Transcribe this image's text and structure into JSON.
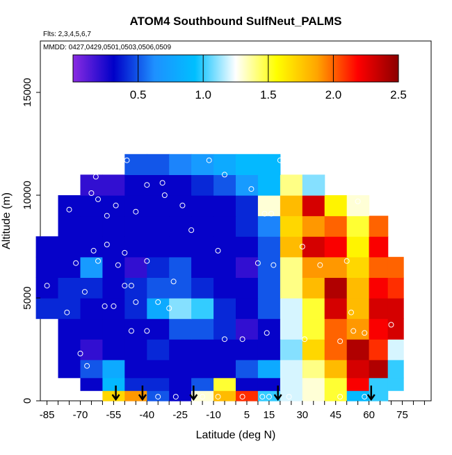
{
  "chart_data": {
    "type": "heatmap",
    "title": "ATOM4 Southbound SulfNeut_PALMS",
    "flights_label": "Flts: 2,3,4,5,6,7",
    "dates_label": "MMDD: 0427,0429,0501,0503,0506,0509",
    "xlabel": "Latitude (deg N)",
    "ylabel": "Altitude (m)",
    "xlim": [
      -88,
      88
    ],
    "ylim": [
      0,
      17500
    ],
    "x_ticks": [
      -85,
      -70,
      -55,
      -40,
      -25,
      -10,
      5,
      15,
      30,
      45,
      60,
      75
    ],
    "y_ticks": [
      0,
      5000,
      10000,
      15000
    ],
    "colorbar": {
      "range": [
        0,
        2.5
      ],
      "ticks": [
        "0.5",
        "1.0",
        "1.5",
        "2.0",
        "2.5"
      ],
      "tick_values": [
        0.5,
        1.0,
        1.5,
        2.0,
        2.5
      ],
      "colors": [
        "#8a2be2",
        "#0000c8",
        "#1e90ff",
        "#00bfff",
        "#ffffff",
        "#ffff00",
        "#ffa500",
        "#ff0000",
        "#8b0000"
      ]
    },
    "sample_arrows_lat": [
      -54,
      -42,
      -19,
      19,
      61
    ],
    "curtain": {
      "lats": [
        -85,
        -75,
        -65,
        -55,
        -45,
        -35,
        -25,
        -15,
        -5,
        5,
        15,
        25,
        35,
        45,
        55,
        65,
        72
      ],
      "alts": [
        250,
        750,
        1500,
        2500,
        3500,
        4500,
        5500,
        6500,
        7500,
        8500,
        9500,
        10500,
        11500
      ],
      "values": [
        [
          null,
          null,
          null,
          1.7,
          1.9,
          0.5,
          0.3,
          1.3,
          1.8,
          2.1,
          1.0,
          1.2,
          1.3,
          1.5,
          0.9,
          1.0,
          null
        ],
        [
          null,
          null,
          0.3,
          0.9,
          0.4,
          0.4,
          0.3,
          0.5,
          1.5,
          0.3,
          0.3,
          1.2,
          1.3,
          1.5,
          2.2,
          1.0,
          1.0
        ],
        [
          null,
          0.3,
          0.5,
          0.8,
          0.3,
          0.3,
          0.3,
          0.3,
          0.3,
          0.5,
          0.8,
          1.2,
          1.4,
          1.8,
          2.3,
          2.4,
          1.0
        ],
        [
          null,
          0.3,
          0.2,
          0.3,
          0.3,
          0.4,
          0.3,
          0.3,
          0.3,
          0.3,
          0.3,
          1.1,
          1.7,
          2.0,
          2.4,
          2.1,
          1.2
        ],
        [
          null,
          0.3,
          0.3,
          0.3,
          0.3,
          0.3,
          0.5,
          0.5,
          0.4,
          0.2,
          0.3,
          1.2,
          1.5,
          2.0,
          1.9,
          2.2,
          2.3
        ],
        [
          0.4,
          0.4,
          0.3,
          0.3,
          0.4,
          0.8,
          1.1,
          1.0,
          0.4,
          0.3,
          0.5,
          1.2,
          1.5,
          2.3,
          1.8,
          2.3,
          2.3
        ],
        [
          0.3,
          0.4,
          0.4,
          0.3,
          0.4,
          0.5,
          0.5,
          0.4,
          0.3,
          0.3,
          0.5,
          1.4,
          1.8,
          2.4,
          1.8,
          2.2,
          2.1
        ],
        [
          0.3,
          0.3,
          0.7,
          0.3,
          0.2,
          0.4,
          0.5,
          0.3,
          0.3,
          0.2,
          0.5,
          1.4,
          1.9,
          1.9,
          1.7,
          2.0,
          2.0
        ],
        [
          0.3,
          0.3,
          0.3,
          0.3,
          0.3,
          0.3,
          0.3,
          0.3,
          0.3,
          0.3,
          0.5,
          1.8,
          2.3,
          2.2,
          1.6,
          2.2,
          null
        ],
        [
          null,
          0.3,
          0.3,
          0.3,
          0.3,
          0.3,
          0.3,
          0.3,
          0.3,
          0.4,
          0.6,
          1.7,
          1.9,
          2.0,
          1.5,
          2.0,
          null
        ],
        [
          null,
          0.3,
          0.3,
          0.3,
          0.3,
          0.3,
          0.3,
          0.3,
          0.3,
          0.4,
          1.3,
          1.8,
          2.3,
          1.6,
          1.3,
          null,
          null
        ],
        [
          null,
          null,
          0.2,
          0.2,
          0.3,
          0.3,
          0.3,
          0.4,
          0.5,
          0.7,
          0.9,
          1.4,
          1.1,
          null,
          null,
          null,
          null
        ],
        [
          null,
          null,
          null,
          null,
          0.5,
          0.5,
          0.6,
          0.7,
          0.8,
          0.9,
          0.9,
          null,
          null,
          null,
          null,
          null,
          null
        ]
      ]
    },
    "sample_points": [
      [
        -63,
        10900
      ],
      [
        -49,
        11700
      ],
      [
        -40,
        10500
      ],
      [
        -33,
        10600
      ],
      [
        -12,
        11700
      ],
      [
        -5,
        11000
      ],
      [
        20,
        11700
      ],
      [
        -84,
        9500
      ],
      [
        -75,
        9300
      ],
      [
        -65,
        10100
      ],
      [
        -62,
        9800
      ],
      [
        -58,
        9000
      ],
      [
        -54,
        9500
      ],
      [
        -45,
        9200
      ],
      [
        -32,
        10000
      ],
      [
        -24,
        9500
      ],
      [
        -20,
        8300
      ],
      [
        7,
        10300
      ],
      [
        13,
        9100
      ],
      [
        16,
        9100
      ],
      [
        30,
        7500
      ],
      [
        55,
        9700
      ],
      [
        -72,
        6700
      ],
      [
        -64,
        7300
      ],
      [
        -62,
        6800
      ],
      [
        -58,
        7600
      ],
      [
        -50,
        7200
      ],
      [
        -53,
        6600
      ],
      [
        -40,
        6800
      ],
      [
        -28,
        5800
      ],
      [
        -8,
        7300
      ],
      [
        10,
        6700
      ],
      [
        17,
        6600
      ],
      [
        38,
        6600
      ],
      [
        50,
        6800
      ],
      [
        70,
        7300
      ],
      [
        -85,
        5600
      ],
      [
        -76,
        4300
      ],
      [
        -68,
        5300
      ],
      [
        -59,
        4600
      ],
      [
        -55,
        4600
      ],
      [
        -50,
        5600
      ],
      [
        -47,
        5600
      ],
      [
        -45,
        4800
      ],
      [
        -35,
        4800
      ],
      [
        -30,
        4500
      ],
      [
        52,
        4300
      ],
      [
        70,
        3700
      ],
      [
        -47,
        3400
      ],
      [
        -40,
        3400
      ],
      [
        -5,
        3000
      ],
      [
        3,
        3000
      ],
      [
        14,
        3300
      ],
      [
        31,
        3000
      ],
      [
        47,
        2900
      ],
      [
        53,
        3400
      ],
      [
        58,
        3300
      ],
      [
        -70,
        2300
      ],
      [
        -67,
        1700
      ],
      [
        -35,
        200
      ],
      [
        -27,
        200
      ],
      [
        -15,
        200
      ],
      [
        -8,
        200
      ],
      [
        3,
        200
      ],
      [
        12,
        200
      ],
      [
        15,
        200
      ],
      [
        24,
        200
      ],
      [
        47,
        200
      ],
      [
        58,
        200
      ],
      [
        72,
        200
      ]
    ]
  }
}
